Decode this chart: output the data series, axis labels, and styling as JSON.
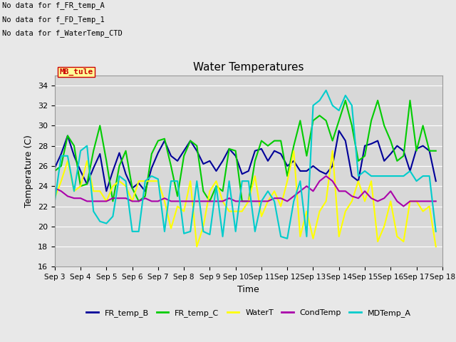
{
  "title": "Water Temperatures",
  "xlabel": "Time",
  "ylabel": "Temperature (C)",
  "ylim": [
    16,
    35
  ],
  "xlim_days": [
    3,
    18
  ],
  "xtick_labels": [
    "Sep 3",
    "Sep 4",
    "Sep 5",
    "Sep 6",
    "Sep 7",
    "Sep 8",
    "Sep 9",
    "Sep 10",
    "Sep 11",
    "Sep 12",
    "Sep 13",
    "Sep 14",
    "Sep 15",
    "Sep 16",
    "Sep 17",
    "Sep 18"
  ],
  "background_color": "#e8e8e8",
  "plot_bg_color": "#d8d8d8",
  "no_data_texts": [
    "No data for f_FR_temp_A",
    "No data for f_FD_Temp_1",
    "No data for f_WaterTemp_CTD"
  ],
  "mb_tule_label": "MB_tule",
  "mb_tule_color": "#cc0000",
  "mb_tule_bg": "#ffff99",
  "legend_entries": [
    {
      "label": "FR_temp_B",
      "color": "#000099"
    },
    {
      "label": "FR_temp_C",
      "color": "#00cc00"
    },
    {
      "label": "WaterT",
      "color": "#ffff00"
    },
    {
      "label": "CondTemp",
      "color": "#aa00aa"
    },
    {
      "label": "MDTemp_A",
      "color": "#00cccc"
    }
  ],
  "series": {
    "FR_temp_B": {
      "color": "#000099",
      "lw": 1.5,
      "t": [
        3.0,
        3.25,
        3.5,
        3.75,
        4.0,
        4.25,
        4.5,
        4.75,
        5.0,
        5.25,
        5.5,
        5.75,
        6.0,
        6.25,
        6.5,
        6.75,
        7.0,
        7.25,
        7.5,
        7.75,
        8.0,
        8.25,
        8.5,
        8.75,
        9.0,
        9.25,
        9.5,
        9.75,
        10.0,
        10.25,
        10.5,
        10.75,
        11.0,
        11.25,
        11.5,
        11.75,
        12.0,
        12.25,
        12.5,
        12.75,
        13.0,
        13.25,
        13.5,
        13.75,
        14.0,
        14.25,
        14.5,
        14.75,
        15.0,
        15.25,
        15.5,
        15.75,
        16.0,
        16.25,
        16.5,
        16.75,
        17.0,
        17.25,
        17.5,
        17.75
      ],
      "v": [
        25.8,
        27.2,
        29.0,
        27.0,
        25.5,
        24.2,
        25.8,
        27.2,
        23.5,
        25.5,
        27.3,
        25.2,
        23.8,
        24.3,
        23.5,
        25.8,
        27.3,
        28.5,
        27.0,
        26.5,
        27.5,
        28.5,
        27.5,
        26.2,
        26.5,
        25.5,
        26.5,
        27.7,
        27.0,
        25.2,
        25.5,
        27.5,
        27.7,
        26.5,
        27.5,
        27.2,
        26.0,
        26.5,
        25.5,
        25.5,
        26.0,
        25.5,
        25.2,
        26.0,
        29.5,
        28.5,
        25.0,
        24.5,
        28.0,
        28.2,
        28.5,
        26.5,
        27.2,
        28.0,
        27.5,
        25.5,
        27.7,
        28.0,
        27.5,
        24.5
      ]
    },
    "FR_temp_C": {
      "color": "#00cc00",
      "lw": 1.5,
      "t": [
        3.0,
        3.25,
        3.5,
        3.75,
        4.0,
        4.25,
        4.5,
        4.75,
        5.0,
        5.25,
        5.5,
        5.75,
        6.0,
        6.25,
        6.5,
        6.75,
        7.0,
        7.25,
        7.5,
        7.75,
        8.0,
        8.25,
        8.5,
        8.75,
        9.0,
        9.25,
        9.5,
        9.75,
        10.0,
        10.25,
        10.5,
        10.75,
        11.0,
        11.25,
        11.5,
        11.75,
        12.0,
        12.25,
        12.5,
        12.75,
        13.0,
        13.25,
        13.5,
        13.75,
        14.0,
        14.25,
        14.5,
        14.75,
        15.0,
        15.25,
        15.5,
        15.75,
        16.0,
        16.25,
        16.5,
        16.75,
        17.0,
        17.25,
        17.5,
        17.75
      ],
      "v": [
        25.5,
        26.0,
        29.0,
        28.0,
        24.0,
        24.2,
        27.5,
        30.0,
        26.5,
        22.5,
        26.0,
        27.5,
        23.8,
        22.5,
        23.0,
        27.2,
        28.5,
        28.7,
        26.0,
        23.0,
        27.0,
        28.5,
        28.0,
        23.5,
        22.5,
        24.0,
        23.5,
        27.7,
        27.5,
        22.5,
        22.5,
        26.5,
        28.5,
        28.0,
        28.5,
        28.5,
        25.0,
        28.0,
        30.5,
        27.0,
        30.5,
        31.0,
        30.5,
        28.5,
        30.5,
        32.5,
        30.0,
        26.5,
        27.0,
        30.5,
        32.5,
        30.0,
        28.5,
        26.5,
        27.0,
        32.5,
        27.5,
        30.0,
        27.5,
        27.5
      ]
    },
    "WaterT": {
      "color": "#ffff00",
      "lw": 1.5,
      "t": [
        3.0,
        3.25,
        3.5,
        3.75,
        4.0,
        4.25,
        4.5,
        4.75,
        5.0,
        5.25,
        5.5,
        5.75,
        6.0,
        6.25,
        6.5,
        6.75,
        7.0,
        7.25,
        7.5,
        7.75,
        8.0,
        8.25,
        8.5,
        8.75,
        9.0,
        9.25,
        9.5,
        9.75,
        10.0,
        10.25,
        10.5,
        10.75,
        11.0,
        11.25,
        11.5,
        11.75,
        12.0,
        12.25,
        12.5,
        12.75,
        13.0,
        13.25,
        13.5,
        13.75,
        14.0,
        14.25,
        14.5,
        14.75,
        15.0,
        15.25,
        15.5,
        15.75,
        16.0,
        16.25,
        16.5,
        16.75,
        17.0,
        17.25,
        17.5,
        17.75
      ],
      "v": [
        22.8,
        24.5,
        26.5,
        23.5,
        24.0,
        26.5,
        23.5,
        23.5,
        22.5,
        24.0,
        24.5,
        24.0,
        22.5,
        24.5,
        24.5,
        24.5,
        24.5,
        22.5,
        19.8,
        22.0,
        21.5,
        24.5,
        18.0,
        20.0,
        23.5,
        24.5,
        22.5,
        21.5,
        21.5,
        21.5,
        22.5,
        25.0,
        21.0,
        22.5,
        23.5,
        22.0,
        24.5,
        27.5,
        19.0,
        21.5,
        18.8,
        21.5,
        22.5,
        27.5,
        19.0,
        21.5,
        22.5,
        24.5,
        22.5,
        24.5,
        18.5,
        20.0,
        22.5,
        19.0,
        18.5,
        22.5,
        22.5,
        21.5,
        22.0,
        18.0
      ]
    },
    "CondTemp": {
      "color": "#aa00aa",
      "lw": 1.5,
      "t": [
        3.0,
        3.25,
        3.5,
        3.75,
        4.0,
        4.25,
        4.5,
        4.75,
        5.0,
        5.25,
        5.5,
        5.75,
        6.0,
        6.25,
        6.5,
        6.75,
        7.0,
        7.25,
        7.5,
        7.75,
        8.0,
        8.25,
        8.5,
        8.75,
        9.0,
        9.25,
        9.5,
        9.75,
        10.0,
        10.25,
        10.5,
        10.75,
        11.0,
        11.25,
        11.5,
        11.75,
        12.0,
        12.25,
        12.5,
        12.75,
        13.0,
        13.25,
        13.5,
        13.75,
        14.0,
        14.25,
        14.5,
        14.75,
        15.0,
        15.25,
        15.5,
        15.75,
        16.0,
        16.25,
        16.5,
        16.75,
        17.0,
        17.25,
        17.5,
        17.75
      ],
      "v": [
        23.8,
        23.5,
        23.0,
        22.8,
        22.8,
        22.5,
        22.5,
        22.5,
        22.5,
        22.8,
        22.8,
        22.8,
        22.5,
        22.5,
        22.8,
        22.5,
        22.5,
        22.8,
        22.5,
        22.5,
        22.5,
        22.5,
        22.5,
        22.5,
        22.5,
        22.5,
        22.5,
        22.8,
        22.5,
        22.5,
        22.5,
        22.5,
        22.5,
        22.5,
        22.8,
        22.8,
        22.5,
        23.0,
        23.5,
        24.0,
        23.5,
        24.5,
        25.0,
        24.5,
        23.5,
        23.5,
        23.0,
        22.8,
        23.5,
        22.8,
        22.5,
        22.8,
        23.5,
        22.5,
        22.0,
        22.5,
        22.5,
        22.5,
        22.5,
        22.5
      ]
    },
    "MDTemp_A": {
      "color": "#00cccc",
      "lw": 1.5,
      "t": [
        3.0,
        3.25,
        3.5,
        3.75,
        4.0,
        4.25,
        4.5,
        4.75,
        5.0,
        5.25,
        5.5,
        5.75,
        6.0,
        6.25,
        6.5,
        6.75,
        7.0,
        7.25,
        7.5,
        7.75,
        8.0,
        8.25,
        8.5,
        8.75,
        9.0,
        9.25,
        9.5,
        9.75,
        10.0,
        10.25,
        10.5,
        10.75,
        11.0,
        11.25,
        11.5,
        11.75,
        12.0,
        12.25,
        12.5,
        12.75,
        13.0,
        13.25,
        13.5,
        13.75,
        14.0,
        14.25,
        14.5,
        14.75,
        15.0,
        15.25,
        15.5,
        15.75,
        16.0,
        16.25,
        16.5,
        16.75,
        17.0,
        17.25,
        17.5,
        17.75
      ],
      "v": [
        22.5,
        27.0,
        27.0,
        23.5,
        27.5,
        28.0,
        21.5,
        20.5,
        20.3,
        21.0,
        25.0,
        24.5,
        19.5,
        19.5,
        24.5,
        25.0,
        24.7,
        19.5,
        24.5,
        24.5,
        19.3,
        19.5,
        24.5,
        19.5,
        19.2,
        24.0,
        19.0,
        24.5,
        19.5,
        24.5,
        24.5,
        19.5,
        22.5,
        23.5,
        22.5,
        19.0,
        18.8,
        22.5,
        24.5,
        19.0,
        32.0,
        32.5,
        33.5,
        32.0,
        31.5,
        33.0,
        32.0,
        25.0,
        25.5,
        25.0,
        25.0,
        25.0,
        25.0,
        25.0,
        25.0,
        25.5,
        24.5,
        25.0,
        25.0,
        19.5
      ]
    }
  }
}
